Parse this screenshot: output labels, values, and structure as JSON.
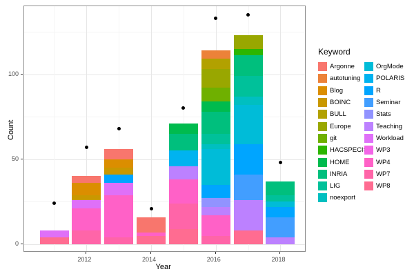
{
  "chart_data": {
    "type": "bar",
    "subtype": "stacked-bars-with-points",
    "title": "",
    "xlabel": "Year",
    "ylabel": "Count",
    "legend_title": "Keyword",
    "legend_position": "right",
    "grid": true,
    "x_tick_labels": [
      "2012",
      "2014",
      "2016",
      "2018"
    ],
    "x_ticks": [
      2012,
      2014,
      2016,
      2018
    ],
    "y_tick_labels": [
      "0",
      "50",
      "100"
    ],
    "y_ticks": [
      0,
      50,
      100
    ],
    "y_minor_ticks": [
      25,
      75,
      125
    ],
    "xlim": [
      2010.55,
      2018.45
    ],
    "ylim": [
      0,
      140
    ],
    "keywords": [
      {
        "name": "Argonne",
        "color": "#F8766D"
      },
      {
        "name": "autotuning",
        "color": "#EC8239"
      },
      {
        "name": "Blog",
        "color": "#DB8E00"
      },
      {
        "name": "BOINC",
        "color": "#C99800"
      },
      {
        "name": "BULL",
        "color": "#B2A100"
      },
      {
        "name": "Europe",
        "color": "#99A700"
      },
      {
        "name": "git",
        "color": "#6FB000"
      },
      {
        "name": "HACSPECIS",
        "color": "#2CB600"
      },
      {
        "name": "HOME",
        "color": "#00BB4E"
      },
      {
        "name": "INRIA",
        "color": "#00BF7D"
      },
      {
        "name": "LIG",
        "color": "#00C19A"
      },
      {
        "name": "noexport",
        "color": "#00BFC0"
      },
      {
        "name": "OrgMode",
        "color": "#00BCD8"
      },
      {
        "name": "POLARIS",
        "color": "#00B3F0"
      },
      {
        "name": "R",
        "color": "#00A5FF"
      },
      {
        "name": "Seminar",
        "color": "#429EFF"
      },
      {
        "name": "Stats",
        "color": "#9193FF"
      },
      {
        "name": "Teaching",
        "color": "#BC81FF"
      },
      {
        "name": "Workload",
        "color": "#DF70F8"
      },
      {
        "name": "WP3",
        "color": "#F365E7"
      },
      {
        "name": "WP4",
        "color": "#FF61C7"
      },
      {
        "name": "WP7",
        "color": "#FF65A8"
      },
      {
        "name": "WP8",
        "color": "#FF6C91"
      }
    ],
    "bars": [
      {
        "year": 2011,
        "total": 8,
        "segments_bottom_to_top": [
          {
            "keyword": "WP8",
            "value": 4
          },
          {
            "keyword": "Workload",
            "value": 4
          }
        ]
      },
      {
        "year": 2012,
        "total": 40,
        "segments_bottom_to_top": [
          {
            "keyword": "WP7",
            "value": 8
          },
          {
            "keyword": "WP4",
            "value": 13
          },
          {
            "keyword": "Workload",
            "value": 5
          },
          {
            "keyword": "BOINC",
            "value": 3
          },
          {
            "keyword": "Blog",
            "value": 7
          },
          {
            "keyword": "Argonne",
            "value": 4
          }
        ]
      },
      {
        "year": 2013,
        "total": 56,
        "segments_bottom_to_top": [
          {
            "keyword": "WP7",
            "value": 4
          },
          {
            "keyword": "WP4",
            "value": 25
          },
          {
            "keyword": "Workload",
            "value": 7
          },
          {
            "keyword": "R",
            "value": 5
          },
          {
            "keyword": "BOINC",
            "value": 4
          },
          {
            "keyword": "Blog",
            "value": 5
          },
          {
            "keyword": "Argonne",
            "value": 6
          }
        ]
      },
      {
        "year": 2014,
        "total": 16,
        "segments_bottom_to_top": [
          {
            "keyword": "WP8",
            "value": 5
          },
          {
            "keyword": "WP4",
            "value": 2
          },
          {
            "keyword": "Argonne",
            "value": 9
          }
        ]
      },
      {
        "year": 2015,
        "total": 71,
        "segments_bottom_to_top": [
          {
            "keyword": "WP8",
            "value": 9
          },
          {
            "keyword": "WP7",
            "value": 15
          },
          {
            "keyword": "WP4",
            "value": 14
          },
          {
            "keyword": "Teaching",
            "value": 8
          },
          {
            "keyword": "POLARIS",
            "value": 9
          },
          {
            "keyword": "INRIA",
            "value": 10
          },
          {
            "keyword": "HOME",
            "value": 6
          }
        ]
      },
      {
        "year": 2016,
        "total": 114,
        "segments_bottom_to_top": [
          {
            "keyword": "WP7",
            "value": 5
          },
          {
            "keyword": "WP4",
            "value": 12
          },
          {
            "keyword": "Teaching",
            "value": 5
          },
          {
            "keyword": "Stats",
            "value": 5
          },
          {
            "keyword": "R",
            "value": 8
          },
          {
            "keyword": "OrgMode",
            "value": 21
          },
          {
            "keyword": "noexport",
            "value": 3
          },
          {
            "keyword": "LIG",
            "value": 6
          },
          {
            "keyword": "INRIA",
            "value": 13
          },
          {
            "keyword": "HOME",
            "value": 6
          },
          {
            "keyword": "git",
            "value": 8
          },
          {
            "keyword": "Europe",
            "value": 11
          },
          {
            "keyword": "BULL",
            "value": 6
          },
          {
            "keyword": "autotuning",
            "value": 5
          }
        ]
      },
      {
        "year": 2017,
        "total": 123,
        "segments_bottom_to_top": [
          {
            "keyword": "WP8",
            "value": 8
          },
          {
            "keyword": "Teaching",
            "value": 18
          },
          {
            "keyword": "Seminar",
            "value": 15
          },
          {
            "keyword": "R",
            "value": 18
          },
          {
            "keyword": "OrgMode",
            "value": 23
          },
          {
            "keyword": "noexport",
            "value": 5
          },
          {
            "keyword": "LIG",
            "value": 12
          },
          {
            "keyword": "INRIA",
            "value": 12
          },
          {
            "keyword": "HACSPECIS",
            "value": 4
          },
          {
            "keyword": "Europe",
            "value": 8
          }
        ]
      },
      {
        "year": 2018,
        "total": 37,
        "segments_bottom_to_top": [
          {
            "keyword": "Teaching",
            "value": 4
          },
          {
            "keyword": "Seminar",
            "value": 12
          },
          {
            "keyword": "R",
            "value": 6
          },
          {
            "keyword": "OrgMode",
            "value": 3
          },
          {
            "keyword": "LIG",
            "value": 4
          },
          {
            "keyword": "INRIA",
            "value": 8
          }
        ]
      }
    ],
    "points": [
      {
        "year": 2011,
        "value": 24
      },
      {
        "year": 2012,
        "value": 57
      },
      {
        "year": 2013,
        "value": 68
      },
      {
        "year": 2014,
        "value": 21
      },
      {
        "year": 2015,
        "value": 80
      },
      {
        "year": 2016,
        "value": 133
      },
      {
        "year": 2017,
        "value": 135
      },
      {
        "year": 2018,
        "value": 48
      }
    ]
  }
}
